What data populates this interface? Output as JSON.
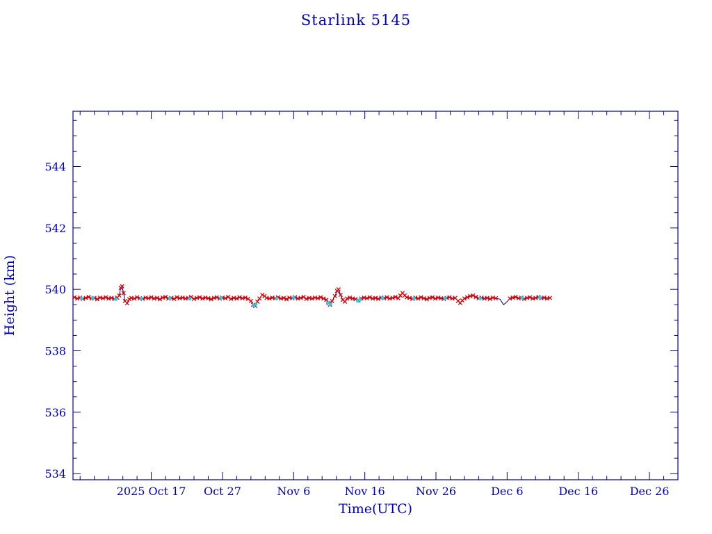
{
  "page": {
    "title": "Starlink 5145"
  },
  "chart_data": {
    "type": "line",
    "title": "Starlink 5145",
    "xlabel": "Time(UTC)",
    "ylabel": "Height (km)",
    "x_unit": "days since 2025-10-06",
    "xlim": [
      0,
      85
    ],
    "ylim": [
      533.8,
      545.8
    ],
    "grid": false,
    "x_major_tick_days": [
      11,
      21,
      31,
      41,
      51,
      61,
      71,
      81
    ],
    "x_tick_labels": [
      "2025 Oct 17",
      "Oct 27",
      "Nov 6",
      "Nov 16",
      "Nov 26",
      "Dec 6",
      "Dec 16",
      "Dec 26"
    ],
    "x_minor_step_days": 2,
    "y_major_ticks": [
      534,
      536,
      538,
      540,
      542,
      544
    ],
    "y_minor_step": 0.5,
    "axis_color": "#000090",
    "line_color": "#000080",
    "series": [
      {
        "name": "height-red",
        "marker": "x",
        "color": "#dd0000",
        "points": [
          [
            0.2,
            539.74
          ],
          [
            0.6,
            539.7
          ],
          [
            1.0,
            539.73
          ],
          [
            1.4,
            539.69
          ],
          [
            1.8,
            539.72
          ],
          [
            2.2,
            539.75
          ],
          [
            2.6,
            539.7
          ],
          [
            3.0,
            539.72
          ],
          [
            3.4,
            539.68
          ],
          [
            3.8,
            539.73
          ],
          [
            4.2,
            539.71
          ],
          [
            4.6,
            539.74
          ],
          [
            5.0,
            539.7
          ],
          [
            5.4,
            539.72
          ],
          [
            5.8,
            539.69
          ],
          [
            6.2,
            539.73
          ],
          [
            6.5,
            539.8
          ],
          [
            6.7,
            540.05
          ],
          [
            6.9,
            540.1
          ],
          [
            7.1,
            539.88
          ],
          [
            7.3,
            539.62
          ],
          [
            7.6,
            539.55
          ],
          [
            7.9,
            539.68
          ],
          [
            8.2,
            539.72
          ],
          [
            8.6,
            539.7
          ],
          [
            9.0,
            539.74
          ],
          [
            9.4,
            539.71
          ],
          [
            9.8,
            539.69
          ],
          [
            10.2,
            539.73
          ],
          [
            10.6,
            539.71
          ],
          [
            11.0,
            539.74
          ],
          [
            11.4,
            539.7
          ],
          [
            11.8,
            539.72
          ],
          [
            12.2,
            539.68
          ],
          [
            12.6,
            539.73
          ],
          [
            13.0,
            539.75
          ],
          [
            13.4,
            539.7
          ],
          [
            13.8,
            539.72
          ],
          [
            14.2,
            539.69
          ],
          [
            14.6,
            539.74
          ],
          [
            15.0,
            539.71
          ],
          [
            15.4,
            539.73
          ],
          [
            15.8,
            539.7
          ],
          [
            16.2,
            539.72
          ],
          [
            16.6,
            539.75
          ],
          [
            17.0,
            539.69
          ],
          [
            17.4,
            539.72
          ],
          [
            17.8,
            539.74
          ],
          [
            18.2,
            539.7
          ],
          [
            18.6,
            539.73
          ],
          [
            19.0,
            539.71
          ],
          [
            19.4,
            539.68
          ],
          [
            19.8,
            539.72
          ],
          [
            20.2,
            539.74
          ],
          [
            20.6,
            539.7
          ],
          [
            21.0,
            539.73
          ],
          [
            21.4,
            539.71
          ],
          [
            21.8,
            539.75
          ],
          [
            22.2,
            539.69
          ],
          [
            22.6,
            539.72
          ],
          [
            23.0,
            539.7
          ],
          [
            23.4,
            539.74
          ],
          [
            23.8,
            539.71
          ],
          [
            24.2,
            539.73
          ],
          [
            24.6,
            539.69
          ],
          [
            25.0,
            539.62
          ],
          [
            25.3,
            539.5
          ],
          [
            25.6,
            539.46
          ],
          [
            25.9,
            539.6
          ],
          [
            26.2,
            539.7
          ],
          [
            26.6,
            539.82
          ],
          [
            26.9,
            539.78
          ],
          [
            27.2,
            539.72
          ],
          [
            27.6,
            539.7
          ],
          [
            28.0,
            539.73
          ],
          [
            28.4,
            539.71
          ],
          [
            28.8,
            539.74
          ],
          [
            29.2,
            539.7
          ],
          [
            29.6,
            539.72
          ],
          [
            30.0,
            539.68
          ],
          [
            30.4,
            539.73
          ],
          [
            30.8,
            539.71
          ],
          [
            31.2,
            539.74
          ],
          [
            31.6,
            539.7
          ],
          [
            32.0,
            539.72
          ],
          [
            32.4,
            539.75
          ],
          [
            32.8,
            539.69
          ],
          [
            33.2,
            539.72
          ],
          [
            33.6,
            539.7
          ],
          [
            34.0,
            539.73
          ],
          [
            34.4,
            539.71
          ],
          [
            34.8,
            539.74
          ],
          [
            35.2,
            539.7
          ],
          [
            35.6,
            539.66
          ],
          [
            35.9,
            539.55
          ],
          [
            36.1,
            539.5
          ],
          [
            36.4,
            539.62
          ],
          [
            36.8,
            539.78
          ],
          [
            37.1,
            539.95
          ],
          [
            37.3,
            540.0
          ],
          [
            37.6,
            539.82
          ],
          [
            37.9,
            539.66
          ],
          [
            38.2,
            539.6
          ],
          [
            38.5,
            539.7
          ],
          [
            38.9,
            539.73
          ],
          [
            39.3,
            539.7
          ],
          [
            39.7,
            539.68
          ],
          [
            40.1,
            539.64
          ],
          [
            40.5,
            539.7
          ],
          [
            40.9,
            539.73
          ],
          [
            41.3,
            539.71
          ],
          [
            41.7,
            539.74
          ],
          [
            42.1,
            539.7
          ],
          [
            42.5,
            539.72
          ],
          [
            42.9,
            539.69
          ],
          [
            43.3,
            539.73
          ],
          [
            43.7,
            539.71
          ],
          [
            44.1,
            539.74
          ],
          [
            44.5,
            539.7
          ],
          [
            44.9,
            539.72
          ],
          [
            45.3,
            539.75
          ],
          [
            45.7,
            539.71
          ],
          [
            46.0,
            539.8
          ],
          [
            46.3,
            539.88
          ],
          [
            46.6,
            539.8
          ],
          [
            46.9,
            539.74
          ],
          [
            47.3,
            539.72
          ],
          [
            47.7,
            539.69
          ],
          [
            48.1,
            539.73
          ],
          [
            48.5,
            539.7
          ],
          [
            48.9,
            539.74
          ],
          [
            49.3,
            539.71
          ],
          [
            49.7,
            539.68
          ],
          [
            50.1,
            539.72
          ],
          [
            50.5,
            539.74
          ],
          [
            50.9,
            539.7
          ],
          [
            51.3,
            539.73
          ],
          [
            51.7,
            539.71
          ],
          [
            52.1,
            539.69
          ],
          [
            52.5,
            539.72
          ],
          [
            52.9,
            539.74
          ],
          [
            53.3,
            539.7
          ],
          [
            53.7,
            539.72
          ],
          [
            54.1,
            539.62
          ],
          [
            54.4,
            539.56
          ],
          [
            54.7,
            539.64
          ],
          [
            55.0,
            539.7
          ],
          [
            55.4,
            539.74
          ],
          [
            55.8,
            539.78
          ],
          [
            56.2,
            539.8
          ],
          [
            56.6,
            539.75
          ],
          [
            57.0,
            539.71
          ],
          [
            57.4,
            539.73
          ],
          [
            57.8,
            539.7
          ],
          [
            58.2,
            539.72
          ],
          [
            58.6,
            539.69
          ],
          [
            59.0,
            539.73
          ],
          [
            59.4,
            539.71
          ],
          [
            61.4,
            539.7
          ],
          [
            61.8,
            539.73
          ],
          [
            62.2,
            539.75
          ],
          [
            62.6,
            539.71
          ],
          [
            63.0,
            539.73
          ],
          [
            63.4,
            539.69
          ],
          [
            63.8,
            539.72
          ],
          [
            64.2,
            539.74
          ],
          [
            64.6,
            539.7
          ],
          [
            65.0,
            539.72
          ],
          [
            65.4,
            539.75
          ],
          [
            65.8,
            539.71
          ],
          [
            66.2,
            539.73
          ],
          [
            66.6,
            539.7
          ],
          [
            67.0,
            539.72
          ]
        ]
      },
      {
        "name": "height-cyan",
        "marker": "square",
        "color": "#22ccee",
        "points": [
          [
            1.2,
            539.7
          ],
          [
            2.8,
            539.72
          ],
          [
            6.0,
            539.68
          ],
          [
            9.6,
            539.7
          ],
          [
            13.6,
            539.71
          ],
          [
            16.4,
            539.69
          ],
          [
            20.8,
            539.72
          ],
          [
            25.4,
            539.48
          ],
          [
            25.7,
            539.52
          ],
          [
            28.6,
            539.7
          ],
          [
            31.0,
            539.72
          ],
          [
            35.8,
            539.56
          ],
          [
            36.2,
            539.52
          ],
          [
            40.0,
            539.62
          ],
          [
            40.3,
            539.66
          ],
          [
            43.5,
            539.72
          ],
          [
            47.9,
            539.7
          ],
          [
            52.3,
            539.71
          ],
          [
            57.2,
            539.7
          ],
          [
            63.1,
            539.72
          ],
          [
            65.6,
            539.73
          ]
        ]
      },
      {
        "name": "height-line-only",
        "marker": "none",
        "color": "#000080",
        "points": [
          [
            60.0,
            539.68
          ],
          [
            60.5,
            539.5
          ],
          [
            61.0,
            539.6
          ]
        ]
      }
    ]
  }
}
